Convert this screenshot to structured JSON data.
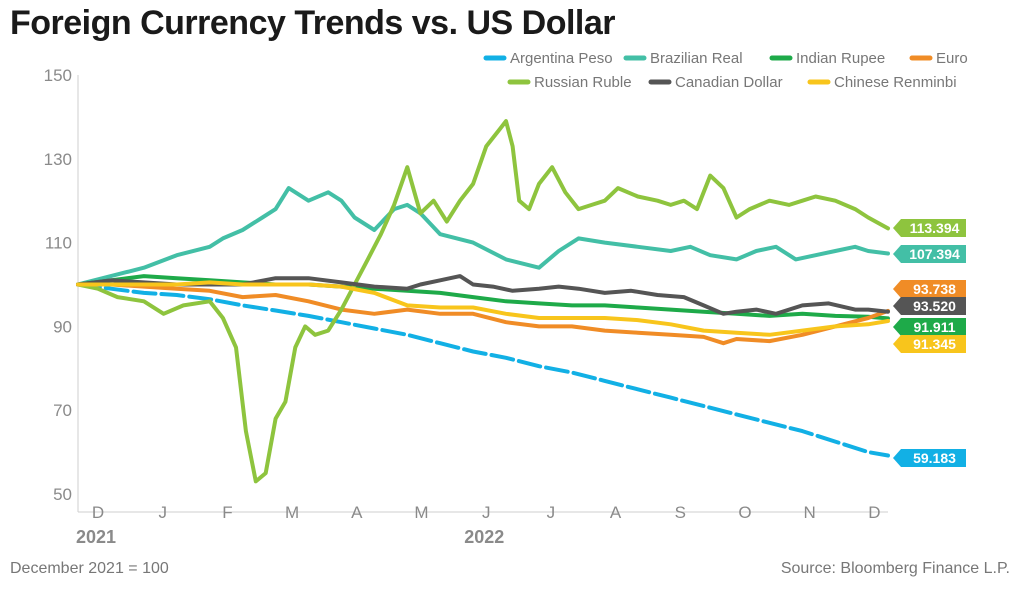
{
  "title": "Foreign Currency Trends vs. US Dollar",
  "footnotes": {
    "left": "December 2021 = 100",
    "right": "Source: Bloomberg Finance L.P."
  },
  "chart_data": {
    "type": "line",
    "title": "Foreign Currency Trends vs. US Dollar",
    "xlabel": "",
    "ylabel": "",
    "x_months": [
      "D",
      "J",
      "F",
      "M",
      "A",
      "M",
      "J",
      "J",
      "A",
      "S",
      "O",
      "N",
      "D"
    ],
    "x_years": [
      {
        "label": "2021",
        "month_index": 0
      },
      {
        "label": "2022",
        "month_index": 6
      }
    ],
    "x_range": [
      0,
      12.3
    ],
    "ylim": [
      50,
      150
    ],
    "y_ticks": [
      50,
      70,
      90,
      110,
      130,
      150
    ],
    "legend_position": "top-right",
    "series": [
      {
        "name": "Argentina Peso",
        "color": "#12b0e5",
        "end_value": "59.183",
        "points": [
          [
            0,
            100
          ],
          [
            0.5,
            99
          ],
          [
            1,
            98
          ],
          [
            1.5,
            97.5
          ],
          [
            2,
            96.5
          ],
          [
            2.5,
            95
          ],
          [
            3,
            93.8
          ],
          [
            3.5,
            92.5
          ],
          [
            4,
            91
          ],
          [
            4.5,
            89.5
          ],
          [
            5,
            88
          ],
          [
            5.5,
            86
          ],
          [
            6,
            84
          ],
          [
            6.5,
            82.5
          ],
          [
            7,
            80.5
          ],
          [
            7.5,
            79
          ],
          [
            8,
            77
          ],
          [
            8.5,
            75
          ],
          [
            9,
            73
          ],
          [
            9.5,
            71
          ],
          [
            10,
            69
          ],
          [
            10.5,
            67
          ],
          [
            11,
            65
          ],
          [
            11.5,
            62.5
          ],
          [
            12,
            60
          ],
          [
            12.3,
            59.2
          ]
        ]
      },
      {
        "name": "Brazilian Real",
        "color": "#43bfa6",
        "end_value": "107.394",
        "points": [
          [
            0,
            100
          ],
          [
            0.5,
            102
          ],
          [
            1,
            104
          ],
          [
            1.5,
            107
          ],
          [
            2,
            109
          ],
          [
            2.2,
            111
          ],
          [
            2.5,
            113
          ],
          [
            2.8,
            116
          ],
          [
            3,
            118
          ],
          [
            3.2,
            123
          ],
          [
            3.5,
            120
          ],
          [
            3.8,
            122
          ],
          [
            4,
            120
          ],
          [
            4.2,
            116
          ],
          [
            4.5,
            113
          ],
          [
            4.8,
            118
          ],
          [
            5,
            119
          ],
          [
            5.2,
            117
          ],
          [
            5.5,
            112
          ],
          [
            6,
            110
          ],
          [
            6.5,
            106
          ],
          [
            7,
            104
          ],
          [
            7.3,
            108
          ],
          [
            7.6,
            111
          ],
          [
            8,
            110
          ],
          [
            8.5,
            109
          ],
          [
            9,
            108
          ],
          [
            9.3,
            109
          ],
          [
            9.6,
            107
          ],
          [
            10,
            106
          ],
          [
            10.3,
            108
          ],
          [
            10.6,
            109
          ],
          [
            10.9,
            106
          ],
          [
            11.2,
            107
          ],
          [
            11.5,
            108
          ],
          [
            11.8,
            109
          ],
          [
            12,
            108
          ],
          [
            12.3,
            107.4
          ]
        ]
      },
      {
        "name": "Indian Rupee",
        "color": "#1eaa49",
        "end_value": "91.911",
        "points": [
          [
            0,
            100
          ],
          [
            0.5,
            101
          ],
          [
            1,
            102
          ],
          [
            1.5,
            101.5
          ],
          [
            2,
            101
          ],
          [
            2.5,
            100.5
          ],
          [
            3,
            100
          ],
          [
            3.5,
            100
          ],
          [
            4,
            99.5
          ],
          [
            4.5,
            99
          ],
          [
            5,
            98.5
          ],
          [
            5.5,
            98
          ],
          [
            6,
            97
          ],
          [
            6.5,
            96
          ],
          [
            7,
            95.5
          ],
          [
            7.5,
            95
          ],
          [
            8,
            95
          ],
          [
            8.5,
            94.5
          ],
          [
            9,
            94
          ],
          [
            9.5,
            93.5
          ],
          [
            10,
            93
          ],
          [
            10.5,
            92.5
          ],
          [
            11,
            93
          ],
          [
            11.5,
            92.5
          ],
          [
            12,
            92.3
          ],
          [
            12.3,
            91.9
          ]
        ]
      },
      {
        "name": "Euro",
        "color": "#f08c26",
        "end_value": "93.738",
        "points": [
          [
            0,
            100
          ],
          [
            0.5,
            100
          ],
          [
            1,
            99.5
          ],
          [
            1.5,
            99
          ],
          [
            2,
            98.5
          ],
          [
            2.5,
            97
          ],
          [
            3,
            97.5
          ],
          [
            3.5,
            96
          ],
          [
            4,
            94
          ],
          [
            4.5,
            93
          ],
          [
            5,
            94
          ],
          [
            5.5,
            93
          ],
          [
            6,
            93
          ],
          [
            6.5,
            91
          ],
          [
            7,
            90
          ],
          [
            7.5,
            90
          ],
          [
            8,
            89
          ],
          [
            8.5,
            88.5
          ],
          [
            9,
            88
          ],
          [
            9.5,
            87.5
          ],
          [
            9.8,
            86
          ],
          [
            10,
            87
          ],
          [
            10.5,
            86.5
          ],
          [
            11,
            88
          ],
          [
            11.5,
            90
          ],
          [
            12,
            92
          ],
          [
            12.3,
            93.7
          ]
        ]
      },
      {
        "name": "Russian Ruble",
        "color": "#8ec43e",
        "end_value": "113.394",
        "points": [
          [
            0,
            100
          ],
          [
            0.3,
            99
          ],
          [
            0.6,
            97
          ],
          [
            1,
            96
          ],
          [
            1.3,
            93
          ],
          [
            1.6,
            95
          ],
          [
            2,
            96
          ],
          [
            2.2,
            92
          ],
          [
            2.4,
            85
          ],
          [
            2.55,
            65
          ],
          [
            2.7,
            53
          ],
          [
            2.85,
            55
          ],
          [
            3,
            68
          ],
          [
            3.15,
            72
          ],
          [
            3.3,
            85
          ],
          [
            3.45,
            90
          ],
          [
            3.6,
            88
          ],
          [
            3.8,
            89
          ],
          [
            4,
            94
          ],
          [
            4.2,
            100
          ],
          [
            4.4,
            106
          ],
          [
            4.6,
            112
          ],
          [
            4.8,
            119
          ],
          [
            5,
            128
          ],
          [
            5.2,
            117
          ],
          [
            5.4,
            120
          ],
          [
            5.6,
            115
          ],
          [
            5.8,
            120
          ],
          [
            6,
            124
          ],
          [
            6.2,
            133
          ],
          [
            6.4,
            137
          ],
          [
            6.5,
            139
          ],
          [
            6.6,
            133
          ],
          [
            6.7,
            120
          ],
          [
            6.85,
            118
          ],
          [
            7,
            124
          ],
          [
            7.2,
            128
          ],
          [
            7.4,
            122
          ],
          [
            7.6,
            118
          ],
          [
            7.8,
            119
          ],
          [
            8,
            120
          ],
          [
            8.2,
            123
          ],
          [
            8.5,
            121
          ],
          [
            8.8,
            120
          ],
          [
            9,
            119
          ],
          [
            9.2,
            120
          ],
          [
            9.4,
            118
          ],
          [
            9.6,
            126
          ],
          [
            9.8,
            123
          ],
          [
            10,
            116
          ],
          [
            10.2,
            118
          ],
          [
            10.5,
            120
          ],
          [
            10.8,
            119
          ],
          [
            11,
            120
          ],
          [
            11.2,
            121
          ],
          [
            11.5,
            120
          ],
          [
            11.8,
            118
          ],
          [
            12,
            116
          ],
          [
            12.3,
            113.4
          ]
        ]
      },
      {
        "name": "Canadian Dollar",
        "color": "#555555",
        "end_value": "93.520",
        "points": [
          [
            0,
            100
          ],
          [
            0.5,
            101
          ],
          [
            1,
            100.5
          ],
          [
            1.5,
            100
          ],
          [
            2,
            100
          ],
          [
            2.5,
            100
          ],
          [
            3,
            101.5
          ],
          [
            3.5,
            101.5
          ],
          [
            4,
            100.5
          ],
          [
            4.5,
            99.5
          ],
          [
            5,
            99
          ],
          [
            5.2,
            100
          ],
          [
            5.5,
            101
          ],
          [
            5.8,
            102
          ],
          [
            6,
            100
          ],
          [
            6.3,
            99.5
          ],
          [
            6.6,
            98.5
          ],
          [
            7,
            99
          ],
          [
            7.3,
            99.5
          ],
          [
            7.6,
            99
          ],
          [
            8,
            98
          ],
          [
            8.4,
            98.5
          ],
          [
            8.8,
            97.5
          ],
          [
            9.2,
            97
          ],
          [
            9.5,
            95
          ],
          [
            9.8,
            93
          ],
          [
            10,
            93.5
          ],
          [
            10.3,
            94
          ],
          [
            10.6,
            93
          ],
          [
            11,
            95
          ],
          [
            11.4,
            95.5
          ],
          [
            11.8,
            94
          ],
          [
            12,
            94
          ],
          [
            12.3,
            93.5
          ]
        ]
      },
      {
        "name": "Chinese Renminbi",
        "color": "#f8c51c",
        "end_value": "91.345",
        "points": [
          [
            0,
            100
          ],
          [
            0.5,
            100
          ],
          [
            1,
            100
          ],
          [
            1.5,
            100
          ],
          [
            2,
            100.5
          ],
          [
            2.5,
            100
          ],
          [
            3,
            100
          ],
          [
            3.5,
            100
          ],
          [
            4,
            99.5
          ],
          [
            4.5,
            98
          ],
          [
            5,
            95
          ],
          [
            5.5,
            94.5
          ],
          [
            6,
            94.5
          ],
          [
            6.5,
            93
          ],
          [
            7,
            92
          ],
          [
            7.5,
            92
          ],
          [
            8,
            92
          ],
          [
            8.5,
            91.5
          ],
          [
            9,
            90.5
          ],
          [
            9.5,
            89
          ],
          [
            10,
            88.5
          ],
          [
            10.5,
            88
          ],
          [
            11,
            89
          ],
          [
            11.5,
            90
          ],
          [
            12,
            90.5
          ],
          [
            12.3,
            91.3
          ]
        ]
      }
    ]
  }
}
